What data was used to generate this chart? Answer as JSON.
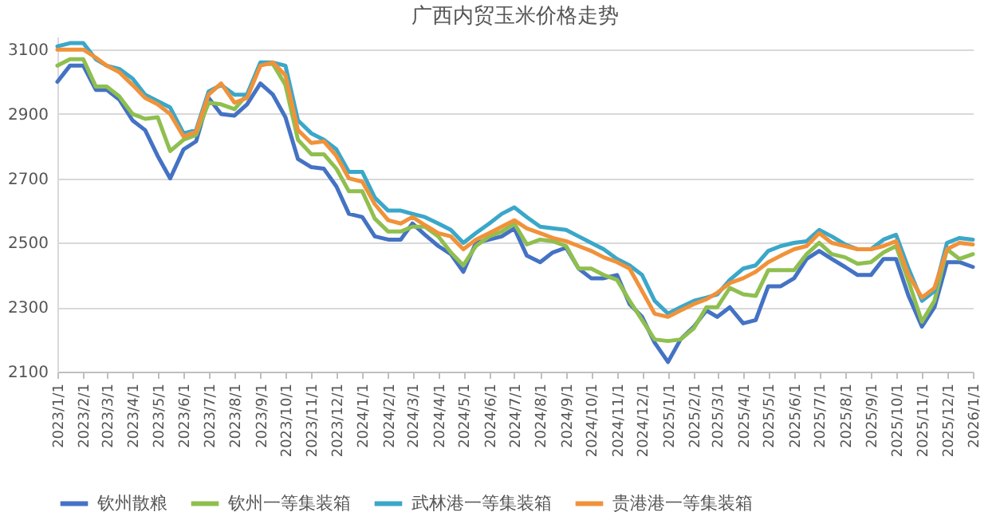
{
  "chart_data": {
    "type": "line",
    "title": "广西内贸玉米价格走势",
    "x": [
      "2023-01-01",
      "2023-01-16",
      "2023-02-01",
      "2023-02-16",
      "2023-03-01",
      "2023-03-16",
      "2023-04-01",
      "2023-04-16",
      "2023-05-01",
      "2023-05-16",
      "2023-06-01",
      "2023-06-16",
      "2023-07-01",
      "2023-07-16",
      "2023-08-01",
      "2023-08-16",
      "2023-09-01",
      "2023-09-16",
      "2023-10-01",
      "2023-10-16",
      "2023-11-01",
      "2023-11-16",
      "2023-12-01",
      "2023-12-16",
      "2024-01-01",
      "2024-01-16",
      "2024-02-01",
      "2024-02-16",
      "2024-03-01",
      "2024-03-16",
      "2024-04-01",
      "2024-04-16",
      "2024-05-01",
      "2024-05-16",
      "2024-06-01",
      "2024-06-16",
      "2024-07-01",
      "2024-07-16",
      "2024-08-01",
      "2024-08-16",
      "2024-09-01",
      "2024-09-16",
      "2024-10-01",
      "2024-10-16",
      "2024-11-01",
      "2024-11-16",
      "2024-12-01",
      "2024-12-16",
      "2025-01-01",
      "2025-01-16",
      "2025-02-01",
      "2025-02-16",
      "2025-03-01",
      "2025-03-16",
      "2025-04-01",
      "2025-04-16",
      "2025-05-01",
      "2025-05-16",
      "2025-06-01",
      "2025-06-16",
      "2025-07-01",
      "2025-07-16",
      "2025-08-01",
      "2025-08-16",
      "2025-09-01",
      "2025-09-16",
      "2025-10-01",
      "2025-10-16",
      "2025-11-01",
      "2025-11-16",
      "2025-12-01",
      "2025-12-16",
      "2026-01-01"
    ],
    "series": [
      {
        "name": "钦州散粮",
        "color": "#4472c4",
        "values": [
          3000,
          3050,
          3050,
          2975,
          2975,
          2945,
          2880,
          2850,
          2770,
          2700,
          2790,
          2815,
          2950,
          2900,
          2895,
          2930,
          2995,
          2960,
          2890,
          2760,
          2735,
          2730,
          2675,
          2590,
          2580,
          2520,
          2510,
          2510,
          2560,
          2525,
          2490,
          2465,
          2410,
          2500,
          2510,
          2520,
          2545,
          2460,
          2440,
          2470,
          2485,
          2420,
          2390,
          2390,
          2400,
          2310,
          2270,
          2190,
          2130,
          2200,
          2240,
          2290,
          2270,
          2300,
          2250,
          2260,
          2365,
          2365,
          2390,
          2450,
          2475,
          2450,
          2425,
          2400,
          2400,
          2450,
          2450,
          2335,
          2240,
          2300,
          2440,
          2440,
          2425
        ]
      },
      {
        "name": "钦州一等集装箱",
        "color": "#8fbf4f",
        "values": [
          3050,
          3070,
          3070,
          2985,
          2985,
          2955,
          2900,
          2885,
          2890,
          2785,
          2820,
          2835,
          2935,
          2930,
          2915,
          2960,
          3055,
          3055,
          2990,
          2820,
          2775,
          2775,
          2730,
          2660,
          2660,
          2575,
          2535,
          2535,
          2550,
          2550,
          2520,
          2470,
          2430,
          2490,
          2520,
          2535,
          2560,
          2495,
          2510,
          2505,
          2490,
          2420,
          2420,
          2400,
          2385,
          2320,
          2260,
          2200,
          2195,
          2200,
          2235,
          2300,
          2300,
          2360,
          2340,
          2335,
          2415,
          2415,
          2415,
          2465,
          2500,
          2465,
          2455,
          2435,
          2440,
          2470,
          2490,
          2380,
          2255,
          2320,
          2480,
          2450,
          2465
        ]
      },
      {
        "name": "武林港一等集装箱",
        "color": "#3ba7c9",
        "values": [
          3110,
          3120,
          3120,
          3070,
          3050,
          3040,
          3010,
          2960,
          2940,
          2920,
          2840,
          2850,
          2970,
          2990,
          2960,
          2960,
          3060,
          3060,
          3050,
          2880,
          2840,
          2820,
          2790,
          2720,
          2720,
          2640,
          2600,
          2600,
          2590,
          2580,
          2560,
          2540,
          2500,
          2530,
          2560,
          2590,
          2610,
          2580,
          2550,
          2545,
          2540,
          2520,
          2500,
          2480,
          2450,
          2430,
          2400,
          2320,
          2280,
          2300,
          2320,
          2330,
          2340,
          2385,
          2420,
          2430,
          2475,
          2490,
          2500,
          2505,
          2540,
          2520,
          2495,
          2480,
          2480,
          2510,
          2525,
          2420,
          2320,
          2350,
          2500,
          2515,
          2510
        ]
      },
      {
        "name": "贵港港一等集装箱",
        "color": "#f0923a",
        "values": [
          3100,
          3100,
          3100,
          3075,
          3050,
          3030,
          2990,
          2950,
          2930,
          2900,
          2830,
          2845,
          2960,
          2995,
          2935,
          2950,
          3050,
          3060,
          3020,
          2850,
          2810,
          2815,
          2770,
          2700,
          2690,
          2620,
          2570,
          2560,
          2580,
          2555,
          2530,
          2520,
          2480,
          2510,
          2530,
          2550,
          2570,
          2545,
          2530,
          2515,
          2505,
          2490,
          2475,
          2455,
          2440,
          2420,
          2350,
          2280,
          2270,
          2290,
          2310,
          2325,
          2345,
          2375,
          2390,
          2410,
          2440,
          2460,
          2480,
          2490,
          2530,
          2500,
          2490,
          2480,
          2480,
          2490,
          2505,
          2400,
          2330,
          2360,
          2480,
          2500,
          2495
        ]
      }
    ],
    "xlim": [
      "2023-01-01",
      "2026-01-01"
    ],
    "xticks": [
      {
        "value": "2023-01-01",
        "label": "2023/1/1"
      },
      {
        "value": "2023-02-01",
        "label": "2023/2/1"
      },
      {
        "value": "2023-03-01",
        "label": "2023/3/1"
      },
      {
        "value": "2023-04-01",
        "label": "2023/4/1"
      },
      {
        "value": "2023-05-01",
        "label": "2023/5/1"
      },
      {
        "value": "2023-06-01",
        "label": "2023/6/1"
      },
      {
        "value": "2023-07-01",
        "label": "2023/7/1"
      },
      {
        "value": "2023-08-01",
        "label": "2023/8/1"
      },
      {
        "value": "2023-09-01",
        "label": "2023/9/1"
      },
      {
        "value": "2023-10-01",
        "label": "2023/10/1"
      },
      {
        "value": "2023-11-01",
        "label": "2023/11/1"
      },
      {
        "value": "2023-12-01",
        "label": "2023/12/1"
      },
      {
        "value": "2024-01-01",
        "label": "2024/1/1"
      },
      {
        "value": "2024-02-01",
        "label": "2024/2/1"
      },
      {
        "value": "2024-03-01",
        "label": "2024/3/1"
      },
      {
        "value": "2024-04-01",
        "label": "2024/4/1"
      },
      {
        "value": "2024-05-01",
        "label": "2024/5/1"
      },
      {
        "value": "2024-06-01",
        "label": "2024/6/1"
      },
      {
        "value": "2024-07-01",
        "label": "2024/7/1"
      },
      {
        "value": "2024-08-01",
        "label": "2024/8/1"
      },
      {
        "value": "2024-09-01",
        "label": "2024/9/1"
      },
      {
        "value": "2024-10-01",
        "label": "2024/10/1"
      },
      {
        "value": "2024-11-01",
        "label": "2024/11/1"
      },
      {
        "value": "2024-12-01",
        "label": "2024/12/1"
      },
      {
        "value": "2025-01-01",
        "label": "2025/1/1"
      },
      {
        "value": "2025-02-01",
        "label": "2025/2/1"
      },
      {
        "value": "2025-03-01",
        "label": "2025/3/1"
      },
      {
        "value": "2025-04-01",
        "label": "2025/4/1"
      },
      {
        "value": "2025-05-01",
        "label": "2025/5/1"
      },
      {
        "value": "2025-06-01",
        "label": "2025/6/1"
      },
      {
        "value": "2025-07-01",
        "label": "2025/7/1"
      },
      {
        "value": "2025-08-01",
        "label": "2025/8/1"
      },
      {
        "value": "2025-09-01",
        "label": "2025/9/1"
      },
      {
        "value": "2025-10-01",
        "label": "2025/10/1"
      },
      {
        "value": "2025-11-01",
        "label": "2025/11/1"
      },
      {
        "value": "2025-12-01",
        "label": "2025/12/1"
      },
      {
        "value": "2026-01-01",
        "label": "2026/1/1"
      }
    ],
    "ylim": [
      2100,
      3140
    ],
    "yticks": [
      2100,
      2300,
      2500,
      2700,
      2900,
      3100
    ],
    "grid": "y",
    "legend": "bottom",
    "line_style": "solid"
  }
}
